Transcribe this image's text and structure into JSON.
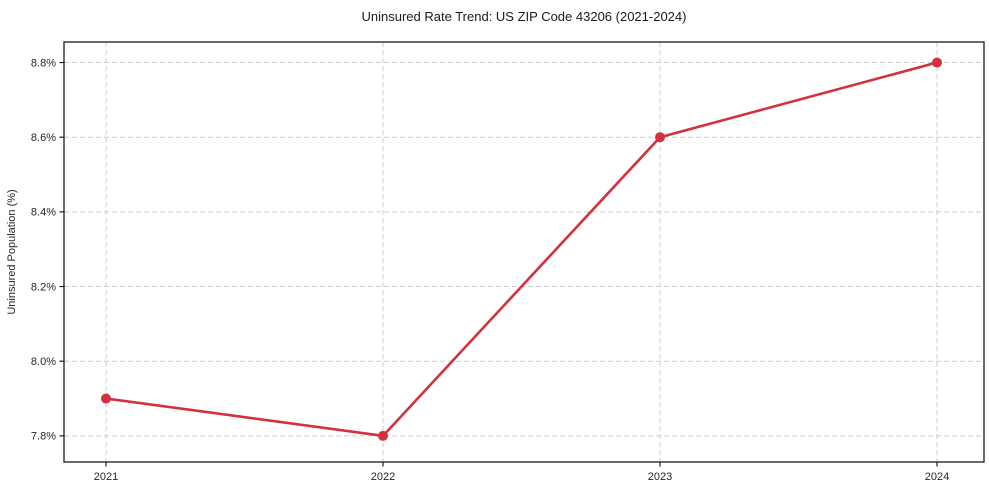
{
  "figure": {
    "background": "#ffffff"
  },
  "chart_data": {
    "type": "line",
    "title": "Uninsured Rate Trend: US ZIP Code 43206 (2021-2024)",
    "xlabel": "",
    "ylabel": "Uninsured Population (%)",
    "categories": [
      "2021",
      "2022",
      "2023",
      "2024"
    ],
    "series": [
      {
        "values": [
          7.9,
          7.8,
          8.6,
          8.8
        ],
        "color": "#d2313d",
        "marker": "circle",
        "line_width": 2.6,
        "marker_radius": 5
      }
    ],
    "yticks": [
      {
        "value": 7.8,
        "label": "7.8%"
      },
      {
        "value": 8.0,
        "label": "8.0%"
      },
      {
        "value": 8.2,
        "label": "8.2%"
      },
      {
        "value": 8.4,
        "label": "8.4%"
      },
      {
        "value": 8.6,
        "label": "8.6%"
      },
      {
        "value": 8.8,
        "label": "8.8%"
      }
    ],
    "ylim": [
      7.73,
      8.855
    ],
    "grid": true,
    "grid_style": "dashed",
    "grid_color": "#cccccc",
    "axes_color": "#1a1a1a",
    "tick_color": "#1a1a1a",
    "legend": "none"
  }
}
